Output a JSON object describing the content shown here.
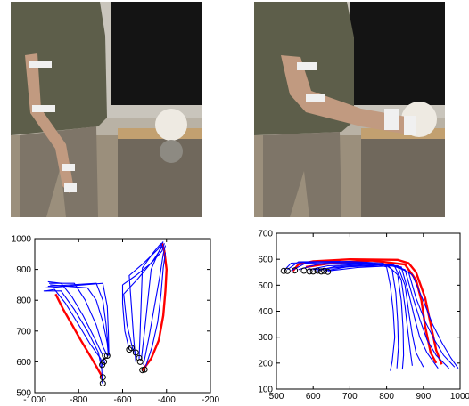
{
  "photos": [
    {
      "name": "photo-standing-beside-ball"
    },
    {
      "name": "photo-grasping-ball"
    }
  ],
  "chart_data": [
    {
      "type": "line",
      "xlim": [
        -1000,
        -200
      ],
      "ylim": [
        500,
        1000
      ],
      "xticks": [
        "-1000",
        "-800",
        "-600",
        "-400",
        "-200"
      ],
      "yticks": [
        "500",
        "600",
        "700",
        "800",
        "900",
        "1000"
      ],
      "grid": false,
      "series": [
        {
          "color": "#ff0000",
          "points": [
            [
              -905,
              820
            ],
            [
              -870,
              770
            ],
            [
              -830,
              720
            ],
            [
              -790,
              670
            ],
            [
              -740,
              610
            ],
            [
              -700,
              560
            ],
            [
              -690,
              545
            ]
          ]
        },
        {
          "color": "#ff0000",
          "points": [
            [
              -510,
              572
            ],
            [
              -470,
              610
            ],
            [
              -435,
              670
            ],
            [
              -415,
              750
            ],
            [
              -405,
              830
            ],
            [
              -400,
              900
            ],
            [
              -410,
              960
            ],
            [
              -420,
              985
            ]
          ]
        },
        {
          "color": "#0000ff",
          "points": [
            [
              -950,
              830
            ],
            [
              -910,
              835
            ],
            [
              -860,
              790
            ],
            [
              -800,
              720
            ],
            [
              -750,
              660
            ],
            [
              -700,
              610
            ],
            [
              -690,
              580
            ]
          ]
        },
        {
          "color": "#0000ff",
          "points": [
            [
              -940,
              860
            ],
            [
              -880,
              855
            ],
            [
              -830,
              810
            ],
            [
              -780,
              750
            ],
            [
              -730,
              680
            ],
            [
              -690,
              620
            ],
            [
              -680,
              592
            ]
          ]
        },
        {
          "color": "#0000ff",
          "points": [
            [
              -935,
              855
            ],
            [
              -820,
              855
            ],
            [
              -770,
              800
            ],
            [
              -720,
              720
            ],
            [
              -690,
              650
            ],
            [
              -670,
              620
            ]
          ]
        },
        {
          "color": "#0000ff",
          "points": [
            [
              -930,
              850
            ],
            [
              -760,
              840
            ],
            [
              -720,
              800
            ],
            [
              -690,
              730
            ],
            [
              -670,
              660
            ],
            [
              -665,
              620
            ]
          ]
        },
        {
          "color": "#0000ff",
          "points": [
            [
              -940,
              845
            ],
            [
              -720,
              855
            ],
            [
              -690,
              800
            ],
            [
              -675,
              720
            ],
            [
              -665,
              640
            ],
            [
              -662,
              620
            ]
          ]
        },
        {
          "color": "#0000ff",
          "points": [
            [
              -950,
              840
            ],
            [
              -690,
              855
            ],
            [
              -670,
              780
            ],
            [
              -665,
              700
            ],
            [
              -663,
              640
            ],
            [
              -662,
              622
            ]
          ]
        },
        {
          "color": "#0000ff",
          "points": [
            [
              -960,
              830
            ],
            [
              -880,
              830
            ],
            [
              -820,
              770
            ],
            [
              -760,
              700
            ],
            [
              -710,
              630
            ],
            [
              -695,
              575
            ],
            [
              -692,
              530
            ]
          ]
        },
        {
          "color": "#0000ff",
          "points": [
            [
              -570,
              640
            ],
            [
              -590,
              700
            ],
            [
              -600,
              790
            ],
            [
              -600,
              850
            ]
          ]
        },
        {
          "color": "#0000ff",
          "points": [
            [
              -600,
              850
            ],
            [
              -540,
              880
            ],
            [
              -470,
              920
            ],
            [
              -420,
              960
            ],
            [
              -410,
              985
            ]
          ]
        },
        {
          "color": "#0000ff",
          "points": [
            [
              -540,
              600
            ],
            [
              -550,
              680
            ],
            [
              -560,
              780
            ],
            [
              -570,
              880
            ],
            [
              -505,
              920
            ],
            [
              -440,
              965
            ],
            [
              -415,
              990
            ]
          ]
        },
        {
          "color": "#0000ff",
          "points": [
            [
              -525,
              610
            ],
            [
              -520,
              700
            ],
            [
              -515,
              800
            ],
            [
              -510,
              905
            ],
            [
              -460,
              955
            ],
            [
              -425,
              985
            ]
          ]
        },
        {
          "color": "#0000ff",
          "points": [
            [
              -515,
              605
            ],
            [
              -500,
              700
            ],
            [
              -485,
              800
            ],
            [
              -470,
              900
            ],
            [
              -440,
              950
            ],
            [
              -420,
              980
            ]
          ]
        },
        {
          "color": "#0000ff",
          "points": [
            [
              -505,
              590
            ],
            [
              -480,
              680
            ],
            [
              -455,
              780
            ],
            [
              -430,
              880
            ],
            [
              -415,
              950
            ],
            [
              -405,
              978
            ]
          ]
        },
        {
          "color": "#0000ff",
          "points": [
            [
              -550,
              630
            ],
            [
              -580,
              720
            ],
            [
              -595,
              820
            ],
            [
              -530,
              870
            ],
            [
              -460,
              930
            ],
            [
              -418,
              975
            ]
          ]
        },
        {
          "color": "#0000ff",
          "points": [
            [
              -495,
              585
            ],
            [
              -465,
              650
            ],
            [
              -440,
              730
            ],
            [
              -425,
              820
            ],
            [
              -415,
              905
            ],
            [
              -405,
              955
            ]
          ]
        }
      ],
      "markers": [
        [
          -690,
          530
        ],
        [
          -690,
          550
        ],
        [
          -693,
          590
        ],
        [
          -685,
          600
        ],
        [
          -680,
          620
        ],
        [
          -670,
          620
        ],
        [
          -570,
          640
        ],
        [
          -560,
          645
        ],
        [
          -540,
          630
        ],
        [
          -525,
          612
        ],
        [
          -520,
          600
        ],
        [
          -500,
          575
        ],
        [
          -510,
          573
        ]
      ]
    },
    {
      "type": "line",
      "xlim": [
        500,
        1000
      ],
      "ylim": [
        100,
        700
      ],
      "xticks": [
        "500",
        "600",
        "700",
        "800",
        "900",
        "1000"
      ],
      "yticks": [
        "100",
        "200",
        "300",
        "400",
        "500",
        "600",
        "700"
      ],
      "grid": false,
      "series": [
        {
          "color": "#ff0000",
          "points": [
            [
              545,
              555
            ],
            [
              560,
              580
            ],
            [
              600,
              592
            ],
            [
              700,
              600
            ],
            [
              830,
              598
            ],
            [
              860,
              585
            ],
            [
              880,
              550
            ],
            [
              905,
              450
            ],
            [
              920,
              350
            ],
            [
              935,
              250
            ],
            [
              950,
              195
            ]
          ]
        },
        {
          "color": "#ff0000",
          "points": [
            [
              580,
              570
            ],
            [
              650,
              585
            ],
            [
              760,
              595
            ],
            [
              850,
              580
            ],
            [
              880,
              520
            ],
            [
              895,
              440
            ],
            [
              905,
              340
            ],
            [
              920,
              240
            ],
            [
              935,
              200
            ]
          ]
        },
        {
          "color": "#0000ff",
          "points": [
            [
              520,
              555
            ],
            [
              540,
              585
            ],
            [
              620,
              590
            ],
            [
              760,
              585
            ],
            [
              800,
              570
            ],
            [
              810,
              500
            ],
            [
              818,
              400
            ],
            [
              822,
              300
            ],
            [
              815,
              205
            ],
            [
              810,
              170
            ]
          ]
        },
        {
          "color": "#0000ff",
          "points": [
            [
              530,
              560
            ],
            [
              560,
              590
            ],
            [
              700,
              592
            ],
            [
              790,
              585
            ],
            [
              815,
              560
            ],
            [
              825,
              470
            ],
            [
              830,
              360
            ],
            [
              832,
              260
            ],
            [
              828,
              180
            ]
          ]
        },
        {
          "color": "#0000ff",
          "points": [
            [
              540,
              556
            ],
            [
              580,
              585
            ],
            [
              720,
              588
            ],
            [
              800,
              580
            ],
            [
              830,
              540
            ],
            [
              840,
              440
            ],
            [
              845,
              330
            ],
            [
              846,
              230
            ],
            [
              843,
              175
            ]
          ]
        },
        {
          "color": "#0000ff",
          "points": [
            [
              560,
              560
            ],
            [
              610,
              580
            ],
            [
              740,
              585
            ],
            [
              820,
              578
            ],
            [
              840,
              520
            ],
            [
              850,
              420
            ],
            [
              858,
              320
            ],
            [
              865,
              240
            ],
            [
              870,
              190
            ]
          ]
        },
        {
          "color": "#0000ff",
          "points": [
            [
              590,
              560
            ],
            [
              640,
              575
            ],
            [
              760,
              582
            ],
            [
              830,
              575
            ],
            [
              850,
              500
            ],
            [
              860,
              400
            ],
            [
              870,
              310
            ],
            [
              880,
              240
            ],
            [
              900,
              185
            ]
          ]
        },
        {
          "color": "#0000ff",
          "points": [
            [
              610,
              555
            ],
            [
              660,
              572
            ],
            [
              780,
              580
            ],
            [
              840,
              570
            ],
            [
              860,
              470
            ],
            [
              875,
              380
            ],
            [
              890,
              300
            ],
            [
              910,
              240
            ],
            [
              940,
              180
            ]
          ]
        },
        {
          "color": "#0000ff",
          "points": [
            [
              630,
              555
            ],
            [
              690,
              570
            ],
            [
              800,
              580
            ],
            [
              850,
              560
            ],
            [
              870,
              460
            ],
            [
              890,
              370
            ],
            [
              910,
              290
            ],
            [
              935,
              230
            ],
            [
              970,
              180
            ]
          ]
        },
        {
          "color": "#0000ff",
          "points": [
            [
              640,
              555
            ],
            [
              720,
              568
            ],
            [
              820,
              575
            ],
            [
              860,
              550
            ],
            [
              880,
              450
            ],
            [
              905,
              360
            ],
            [
              930,
              290
            ],
            [
              955,
              230
            ],
            [
              985,
              185
            ]
          ]
        },
        {
          "color": "#0000ff",
          "points": [
            [
              600,
              560
            ],
            [
              700,
              572
            ],
            [
              830,
              575
            ],
            [
              870,
              540
            ],
            [
              900,
              440
            ],
            [
              925,
              350
            ],
            [
              950,
              280
            ],
            [
              975,
              220
            ],
            [
              995,
              180
            ]
          ]
        }
      ],
      "markers": [
        [
          520,
          555
        ],
        [
          530,
          555
        ],
        [
          550,
          557
        ],
        [
          575,
          556
        ],
        [
          590,
          553
        ],
        [
          600,
          553
        ],
        [
          612,
          556
        ],
        [
          622,
          553
        ],
        [
          630,
          555
        ],
        [
          640,
          552
        ]
      ]
    }
  ]
}
